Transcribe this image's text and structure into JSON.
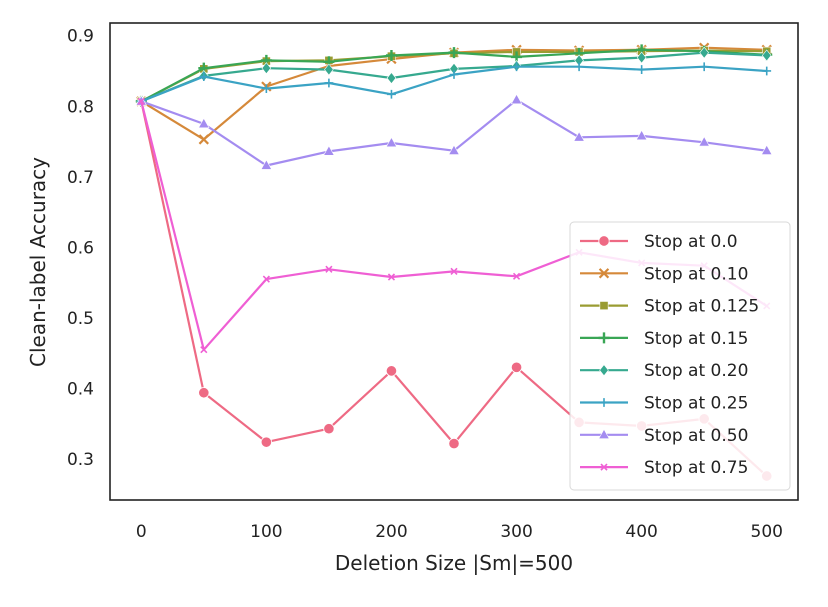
{
  "chart_data": {
    "type": "line",
    "title": "",
    "xlabel": "Deletion Size |Sm|=500",
    "ylabel": "Clean-label Accuracy",
    "xlim": [
      -25,
      525
    ],
    "ylim": [
      0.242,
      0.918
    ],
    "xticks": [
      0,
      100,
      200,
      300,
      400,
      500
    ],
    "xtick_labels": [
      "0",
      "100",
      "200",
      "300",
      "400",
      "500"
    ],
    "yticks": [
      0.3,
      0.4,
      0.5,
      0.6,
      0.7,
      0.8,
      0.9
    ],
    "ytick_labels": [
      "0.3",
      "0.4",
      "0.5",
      "0.6",
      "0.7",
      "0.8",
      "0.9"
    ],
    "grid": false,
    "legend_position": "lower-right",
    "x": [
      0,
      50,
      100,
      150,
      200,
      250,
      300,
      350,
      400,
      450,
      500
    ],
    "series": [
      {
        "name": "Stop at 0.0",
        "color": "#ee6a84",
        "marker": "circle",
        "values": [
          0.807,
          0.394,
          0.324,
          0.343,
          0.425,
          0.322,
          0.43,
          0.352,
          0.347,
          0.357,
          0.276
        ]
      },
      {
        "name": "Stop at 0.10",
        "color": "#d5893a",
        "marker": "x",
        "values": [
          0.807,
          0.753,
          0.828,
          0.857,
          0.867,
          0.876,
          0.88,
          0.879,
          0.88,
          0.883,
          0.88
        ]
      },
      {
        "name": "Stop at 0.125",
        "color": "#9a9c32",
        "marker": "square",
        "values": [
          0.807,
          0.853,
          0.864,
          0.865,
          0.871,
          0.875,
          0.877,
          0.877,
          0.878,
          0.879,
          0.878
        ]
      },
      {
        "name": "Stop at 0.15",
        "color": "#39a655",
        "marker": "plus",
        "values": [
          0.807,
          0.854,
          0.865,
          0.863,
          0.872,
          0.876,
          0.87,
          0.875,
          0.88,
          0.878,
          0.873
        ]
      },
      {
        "name": "Stop at 0.20",
        "color": "#36a98f",
        "marker": "diamond",
        "values": [
          0.807,
          0.843,
          0.854,
          0.852,
          0.84,
          0.853,
          0.857,
          0.865,
          0.869,
          0.876,
          0.872
        ]
      },
      {
        "name": "Stop at 0.25",
        "color": "#3ba3c4",
        "marker": "thin-plus",
        "values": [
          0.807,
          0.842,
          0.825,
          0.833,
          0.817,
          0.845,
          0.856,
          0.856,
          0.852,
          0.856,
          0.85
        ]
      },
      {
        "name": "Stop at 0.50",
        "color": "#a48cf0",
        "marker": "triangle",
        "values": [
          0.807,
          0.775,
          0.716,
          0.736,
          0.748,
          0.737,
          0.809,
          0.756,
          0.758,
          0.749,
          0.737
        ]
      },
      {
        "name": "Stop at 0.75",
        "color": "#ef5fd4",
        "marker": "small-x",
        "values": [
          0.807,
          0.455,
          0.555,
          0.569,
          0.558,
          0.566,
          0.559,
          0.593,
          0.578,
          0.574,
          0.517
        ]
      }
    ]
  }
}
